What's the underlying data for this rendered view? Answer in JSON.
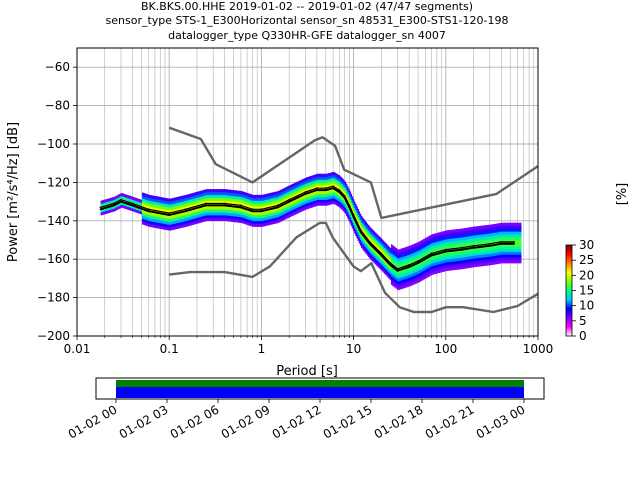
{
  "title_lines": [
    "BK.BKS.00.HHE   2019-01-02 -- 2019-01-02  (47/47 segments)",
    "sensor_type STS-1_E300Horizontal sensor_sn 48531_E300-STS1-120-198",
    "datalogger_type Q330HR-GFE datalogger_sn 4007"
  ],
  "chart_data": [
    {
      "type": "heatmap",
      "subtype": "probabilistic-power-spectral-density",
      "xlabel": "Period [s]",
      "ylabel": "Power [m²/s⁴/Hz] [dB]",
      "xscale": "log",
      "xlim": [
        0.01,
        1000
      ],
      "ylim": [
        -200,
        -50
      ],
      "xticks": [
        0.01,
        0.1,
        1,
        10,
        100,
        1000
      ],
      "xtick_labels": [
        "0.01",
        "0.1",
        "1",
        "10",
        "100",
        "1000"
      ],
      "yticks": [
        -200,
        -180,
        -160,
        -140,
        -120,
        -100,
        -80,
        -60
      ],
      "ytick_labels": [
        "−200",
        "−180",
        "−160",
        "−140",
        "−120",
        "−100",
        "−80",
        "−60"
      ],
      "grid": true,
      "colorbar": {
        "label": "[%]",
        "range": [
          0,
          30
        ],
        "ticks": [
          0,
          5,
          10,
          15,
          20,
          25,
          30
        ],
        "colormap": [
          "#ffffff",
          "#ff00ff",
          "#8000ff",
          "#0000ff",
          "#00ccff",
          "#00ff80",
          "#80ff00",
          "#ffff00",
          "#ff8000",
          "#ff0000",
          "#800000"
        ]
      },
      "series": [
        {
          "role": "mean",
          "color": "#000000",
          "x": [
            0.018,
            0.025,
            0.03,
            0.04,
            0.06,
            0.1,
            0.15,
            0.25,
            0.4,
            0.6,
            0.8,
            1.0,
            1.5,
            2.0,
            3.0,
            4.0,
            5.0,
            6.0,
            7.0,
            8.0,
            9.0,
            10.0,
            12.0,
            15.0,
            20.0,
            25.0,
            30.0,
            40.0,
            50.0,
            70.0,
            100.0,
            150.0,
            200.0,
            300.0,
            400.0,
            550.0
          ],
          "y": [
            -134,
            -132,
            -130,
            -132,
            -135,
            -137,
            -135,
            -132,
            -132,
            -133,
            -135,
            -135,
            -133,
            -130,
            -126,
            -124,
            -124,
            -123,
            -125,
            -128,
            -133,
            -138,
            -146,
            -152,
            -158,
            -163,
            -166,
            -164,
            -162,
            -158,
            -156,
            -155,
            -154,
            -153,
            -152,
            -152
          ]
        },
        {
          "role": "mode",
          "color": "#000000",
          "x": [
            0.018,
            0.025,
            0.03,
            0.04,
            0.06,
            0.1,
            0.15,
            0.25,
            0.4,
            0.6,
            0.8,
            1.0,
            1.5,
            2.0,
            3.0,
            4.0,
            5.0,
            6.0,
            7.0,
            8.0,
            9.0,
            10.0,
            12.0,
            15.0,
            20.0,
            25.0,
            30.0,
            40.0,
            50.0,
            70.0,
            100.0,
            150.0,
            200.0,
            300.0,
            400.0,
            550.0
          ],
          "y": [
            -133,
            -131,
            -129,
            -131,
            -134,
            -136,
            -134,
            -131,
            -131,
            -132,
            -134,
            -134,
            -132,
            -129,
            -125,
            -123,
            -123,
            -122,
            -124,
            -127,
            -132,
            -137,
            -145,
            -151,
            -157,
            -162,
            -165,
            -163,
            -161,
            -157,
            -155,
            -154,
            -153,
            -152,
            -151,
            -151
          ]
        },
        {
          "role": "new-high-noise-model",
          "color": "#666666",
          "x": [
            0.1,
            0.22,
            0.32,
            0.8,
            3.8,
            4.6,
            6.3,
            7.9,
            15.4,
            20.0,
            354.8,
            1000
          ],
          "y": [
            -91.5,
            -97.4,
            -110.5,
            -120.0,
            -98.0,
            -96.5,
            -101.0,
            -113.4,
            -120.0,
            -138.5,
            -126.0,
            -111.5
          ]
        },
        {
          "role": "new-low-noise-model",
          "color": "#666666",
          "x": [
            0.1,
            0.17,
            0.4,
            0.8,
            1.24,
            2.4,
            4.3,
            5.0,
            6.0,
            10.0,
            12.0,
            15.6,
            21.9,
            31.6,
            45.0,
            70.0,
            101.0,
            154.0,
            328.0,
            600.0,
            1000
          ],
          "y": [
            -168.0,
            -166.7,
            -166.7,
            -169.2,
            -163.7,
            -148.6,
            -141.1,
            -141.1,
            -149.0,
            -163.8,
            -166.2,
            -162.1,
            -177.5,
            -185.0,
            -187.5,
            -187.5,
            -185.0,
            -185.0,
            -187.5,
            -184.4,
            -178.0
          ]
        }
      ]
    },
    {
      "type": "timeline",
      "x_range": [
        "2019-01-02 00",
        "2019-01-03 00"
      ],
      "tick_labels": [
        "01-02 00",
        "01-02 03",
        "01-02 06",
        "01-02 09",
        "01-02 12",
        "01-02 15",
        "01-02 18",
        "01-02 21",
        "01-03 00"
      ],
      "bars": [
        {
          "role": "coverage",
          "color": "#008000",
          "start": "2019-01-02 00",
          "end": "2019-01-03 00"
        },
        {
          "role": "processed",
          "color": "#0000ff",
          "start": "2019-01-02 00",
          "end": "2019-01-03 00"
        }
      ]
    }
  ]
}
